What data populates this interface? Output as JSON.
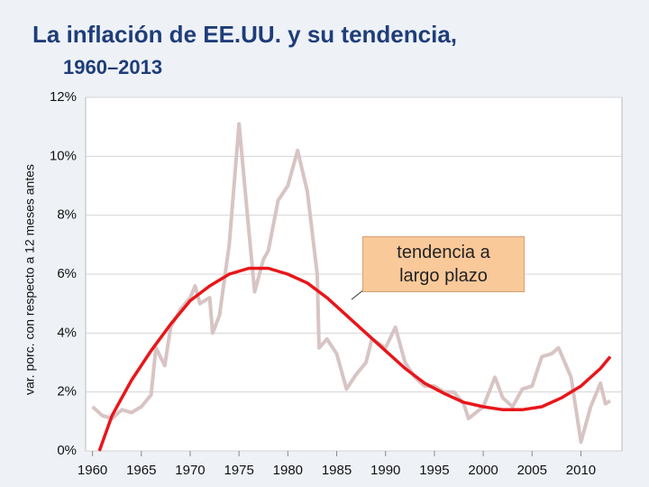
{
  "chart_data": {
    "type": "line",
    "title": "La inflación de EE.UU. y su tendencia,",
    "subtitle": "1960–2013",
    "y_label": "var. porc. con respecto a 12 meses antes",
    "annotation": "tendencia a largo plazo",
    "xlim": [
      1959.3,
      2014.2
    ],
    "ylim": [
      0,
      12
    ],
    "xticks": [
      1960,
      1965,
      1970,
      1975,
      1980,
      1985,
      1990,
      1995,
      2000,
      2005,
      2010
    ],
    "yticks": [
      {
        "value": 0,
        "label": "0%"
      },
      {
        "value": 2,
        "label": "2%"
      },
      {
        "value": 4,
        "label": "4%"
      },
      {
        "value": 6,
        "label": "6%"
      },
      {
        "value": 8,
        "label": "8%"
      },
      {
        "value": 10,
        "label": "10%"
      },
      {
        "value": 12,
        "label": "12%"
      }
    ],
    "grid": true,
    "series": [
      {
        "color": "#d8c4c4",
        "x": [
          1960,
          1961,
          1962,
          1963,
          1964,
          1965,
          1966,
          1966.5,
          1967.4,
          1968,
          1969,
          1970,
          1970.5,
          1971,
          1972,
          1972.3,
          1973,
          1974,
          1975,
          1976,
          1976.6,
          1977.5,
          1978,
          1979,
          1980,
          1981,
          1982,
          1983,
          1983.2,
          1984,
          1985,
          1986,
          1987,
          1988,
          1988.6,
          1990,
          1991,
          1992,
          1993,
          1994,
          1995,
          1996,
          1997,
          1998,
          1998.5,
          2000,
          2001.2,
          2002,
          2003,
          2004,
          2005,
          2006,
          2007,
          2007.7,
          2009,
          2010,
          2011,
          2012,
          2012.5,
          2013
        ],
        "values": [
          1.5,
          1.2,
          1.1,
          1.4,
          1.3,
          1.5,
          1.9,
          3.5,
          2.9,
          4.2,
          4.8,
          5.2,
          5.6,
          5.0,
          5.2,
          4.0,
          4.6,
          7.0,
          11.1,
          7.5,
          5.4,
          6.5,
          6.8,
          8.5,
          9.0,
          10.2,
          8.8,
          6.0,
          3.5,
          3.8,
          3.3,
          2.1,
          2.6,
          3.0,
          3.8,
          3.5,
          4.2,
          3.0,
          2.5,
          2.2,
          2.2,
          2.0,
          2.0,
          1.6,
          1.1,
          1.5,
          2.5,
          1.8,
          1.5,
          2.1,
          2.2,
          3.2,
          3.3,
          3.5,
          2.5,
          0.3,
          1.5,
          2.3,
          1.6,
          1.7
        ]
      },
      {
        "color": "#e8161a",
        "x": [
          1960.7,
          1962,
          1964,
          1966,
          1968,
          1970,
          1972,
          1974,
          1976,
          1978,
          1980,
          1982,
          1984,
          1986,
          1988,
          1990,
          1992,
          1994,
          1996,
          1998,
          2000,
          2002,
          2004,
          2006,
          2008,
          2010,
          2012,
          2013
        ],
        "values": [
          0,
          1.2,
          2.4,
          3.4,
          4.3,
          5.1,
          5.6,
          6.0,
          6.2,
          6.2,
          6.0,
          5.7,
          5.2,
          4.6,
          4.0,
          3.4,
          2.8,
          2.3,
          1.95,
          1.65,
          1.5,
          1.4,
          1.4,
          1.5,
          1.8,
          2.2,
          2.8,
          3.2
        ]
      }
    ]
  }
}
